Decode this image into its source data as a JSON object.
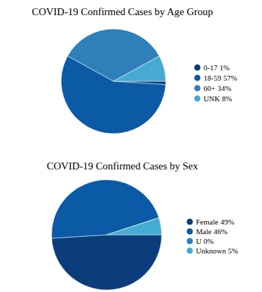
{
  "chart_data": [
    {
      "type": "pie",
      "title": "COVID-19 Confirmed Cases by Age Group",
      "categories": [
        "0-17",
        "18-59",
        "60+",
        "UNK"
      ],
      "values": [
        1,
        57,
        34,
        8
      ],
      "value_labels": [
        "1%",
        "57%",
        "34%",
        "8%"
      ],
      "colors": [
        "#0b3d7c",
        "#0a5aa6",
        "#2f7fbb",
        "#46abd2"
      ],
      "legend": "right"
    },
    {
      "type": "pie",
      "title": "COVID-19 Confirmed Cases by Sex",
      "categories": [
        "Female",
        "Male",
        "U",
        "Unknown"
      ],
      "values": [
        49,
        46,
        0,
        5
      ],
      "value_labels": [
        "49%",
        "46%",
        "0%",
        "5%"
      ],
      "colors": [
        "#0b3d7c",
        "#0a5aa6",
        "#2f7fbb",
        "#46abd2"
      ],
      "legend": "right"
    }
  ]
}
